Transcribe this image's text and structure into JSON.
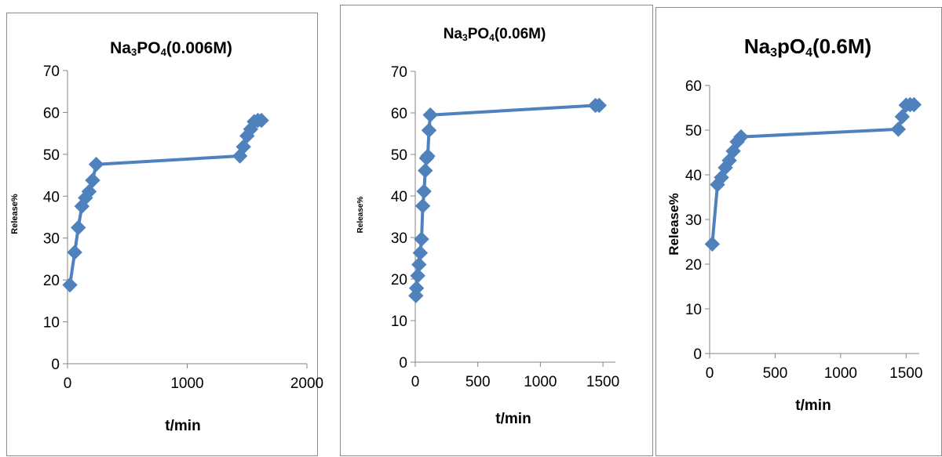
{
  "colors": {
    "series": "#4f81bd",
    "axis": "#868686",
    "border": "#8c8c8c"
  },
  "chart_data": [
    {
      "type": "line",
      "title": {
        "main": "Na",
        "sub1": "3",
        "mid": "PO",
        "sub2": "4",
        "end": "(0.006M)"
      },
      "xlabel": "t/min",
      "ylabel": "Release%",
      "xlim": [
        0,
        2000
      ],
      "ylim": [
        0,
        70
      ],
      "xticks": [
        0,
        1000,
        2000
      ],
      "yticks": [
        0,
        10,
        20,
        30,
        40,
        50,
        60,
        70
      ],
      "grid": false,
      "marker": "diamond",
      "x": [
        20,
        60,
        90,
        120,
        150,
        180,
        210,
        240,
        1440,
        1470,
        1500,
        1530,
        1560,
        1590,
        1620
      ],
      "y": [
        18.8,
        26.6,
        32.5,
        37.6,
        39.6,
        41.1,
        43.8,
        47.6,
        49.6,
        51.8,
        54.4,
        56.0,
        57.8,
        58.1,
        58.1
      ]
    },
    {
      "type": "line",
      "title": {
        "main": "Na",
        "sub1": "3",
        "mid": "PO",
        "sub2": "4",
        "end": "(0.06M)"
      },
      "xlabel": "t/min",
      "ylabel": "Release%",
      "xlim": [
        0,
        1600
      ],
      "ylim": [
        0,
        70
      ],
      "xticks": [
        0,
        500,
        1000,
        1500
      ],
      "yticks": [
        0,
        10,
        20,
        30,
        40,
        50,
        60,
        70
      ],
      "grid": false,
      "marker": "diamond",
      "x": [
        5,
        10,
        20,
        30,
        40,
        50,
        60,
        70,
        80,
        90,
        100,
        110,
        120,
        1440,
        1470
      ],
      "y": [
        16.0,
        17.8,
        20.8,
        23.5,
        26.3,
        29.6,
        37.6,
        41.1,
        46.1,
        49.1,
        49.6,
        55.8,
        59.5,
        61.8,
        61.8
      ]
    },
    {
      "type": "line",
      "title": {
        "main": "Na",
        "sub1": "3",
        "mid": "pO",
        "sub2": "4",
        "end": "(0.6M)"
      },
      "xlabel": "t/min",
      "ylabel": "Release%",
      "xlim": [
        0,
        1600
      ],
      "ylim": [
        0,
        60
      ],
      "xticks": [
        0,
        500,
        1000,
        1500
      ],
      "yticks": [
        0,
        10,
        20,
        30,
        40,
        50,
        60
      ],
      "grid": false,
      "marker": "diamond",
      "x": [
        20,
        60,
        90,
        120,
        150,
        180,
        210,
        240,
        1440,
        1470,
        1500,
        1530,
        1560
      ],
      "y": [
        24.5,
        37.8,
        39.4,
        41.6,
        43.2,
        45.3,
        47.4,
        48.5,
        50.2,
        53.0,
        55.6,
        55.7,
        55.7
      ]
    }
  ]
}
